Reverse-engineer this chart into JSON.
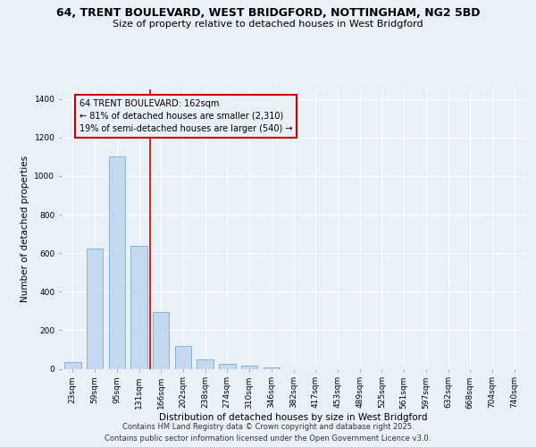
{
  "title_line1": "64, TRENT BOULEVARD, WEST BRIDGFORD, NOTTINGHAM, NG2 5BD",
  "title_line2": "Size of property relative to detached houses in West Bridgford",
  "xlabel": "Distribution of detached houses by size in West Bridgford",
  "ylabel": "Number of detached properties",
  "categories": [
    "23sqm",
    "59sqm",
    "95sqm",
    "131sqm",
    "166sqm",
    "202sqm",
    "238sqm",
    "274sqm",
    "310sqm",
    "346sqm",
    "382sqm",
    "417sqm",
    "453sqm",
    "489sqm",
    "525sqm",
    "561sqm",
    "597sqm",
    "632sqm",
    "668sqm",
    "704sqm",
    "740sqm"
  ],
  "values": [
    35,
    625,
    1100,
    640,
    295,
    120,
    50,
    25,
    18,
    8,
    0,
    0,
    0,
    0,
    0,
    0,
    0,
    0,
    0,
    0,
    0
  ],
  "bar_color": "#c5d8f0",
  "bar_edge_color": "#7aadd4",
  "bg_color": "#eaf0f8",
  "grid_color": "#ffffff",
  "vline_color": "#cc0000",
  "vline_pos": 3.5,
  "annotation_text": "64 TRENT BOULEVARD: 162sqm\n← 81% of detached houses are smaller (2,310)\n19% of semi-detached houses are larger (540) →",
  "annotation_box_color": "#cc0000",
  "ylim": [
    0,
    1450
  ],
  "yticks": [
    0,
    200,
    400,
    600,
    800,
    1000,
    1200,
    1400
  ],
  "footer_line1": "Contains HM Land Registry data © Crown copyright and database right 2025.",
  "footer_line2": "Contains public sector information licensed under the Open Government Licence v3.0.",
  "title_fontsize": 9,
  "subtitle_fontsize": 8,
  "axis_label_fontsize": 7.5,
  "tick_fontsize": 6.5,
  "annotation_fontsize": 7,
  "footer_fontsize": 6
}
